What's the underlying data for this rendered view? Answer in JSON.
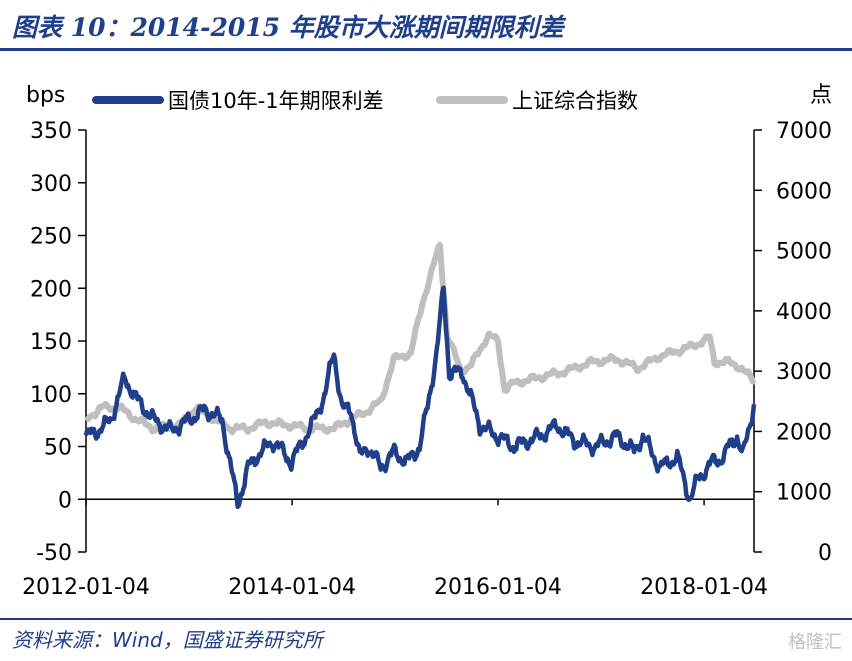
{
  "title": "图表 10：2014-2015 年股市大涨期间期限利差",
  "source": "资料来源：Wind，国盛证券研究所",
  "watermark": "格隆汇",
  "chart_data": {
    "type": "line",
    "y_left_unit": "bps",
    "y_right_unit": "点",
    "y_left_ticks": [
      "-50",
      "0",
      "50",
      "100",
      "150",
      "200",
      "250",
      "300",
      "350"
    ],
    "y_right_ticks": [
      "0",
      "1000",
      "2000",
      "3000",
      "4000",
      "5000",
      "6000",
      "7000"
    ],
    "x_ticks": [
      "2012-01-04",
      "2014-01-04",
      "2016-01-04",
      "2018-01-04"
    ],
    "ylim_left": [
      -50,
      350
    ],
    "ylim_right": [
      0,
      7000
    ],
    "xlim": [
      "2012-01-04",
      "2018-06-30"
    ],
    "legend_position": "top",
    "grid": false,
    "series": [
      {
        "name": "国债10年-1年期限利差",
        "axis": "left",
        "color": "#1f3f8a",
        "points": [
          [
            "2012-01-04",
            60
          ],
          [
            "2012-02-15",
            65
          ],
          [
            "2012-04-01",
            75
          ],
          [
            "2012-05-20",
            115
          ],
          [
            "2012-07-01",
            95
          ],
          [
            "2012-09-01",
            75
          ],
          [
            "2012-11-01",
            65
          ],
          [
            "2013-01-01",
            75
          ],
          [
            "2013-03-01",
            85
          ],
          [
            "2013-05-01",
            75
          ],
          [
            "2013-06-01",
            30
          ],
          [
            "2013-06-25",
            -5
          ],
          [
            "2013-08-01",
            30
          ],
          [
            "2013-09-15",
            45
          ],
          [
            "2013-11-01",
            55
          ],
          [
            "2014-01-01",
            35
          ],
          [
            "2014-02-01",
            50
          ],
          [
            "2014-03-15",
            70
          ],
          [
            "2014-05-01",
            100
          ],
          [
            "2014-06-01",
            140
          ],
          [
            "2014-07-01",
            85
          ],
          [
            "2014-08-01",
            85
          ],
          [
            "2014-09-01",
            40
          ],
          [
            "2014-10-01",
            50
          ],
          [
            "2014-11-15",
            30
          ],
          [
            "2015-01-01",
            45
          ],
          [
            "2015-02-15",
            35
          ],
          [
            "2015-04-01",
            50
          ],
          [
            "2015-05-01",
            90
          ],
          [
            "2015-06-01",
            140
          ],
          [
            "2015-06-25",
            200
          ],
          [
            "2015-07-15",
            120
          ],
          [
            "2015-09-01",
            120
          ],
          [
            "2015-11-01",
            70
          ],
          [
            "2016-01-01",
            60
          ],
          [
            "2016-03-01",
            50
          ],
          [
            "2016-06-01",
            60
          ],
          [
            "2016-08-01",
            70
          ],
          [
            "2016-10-01",
            55
          ],
          [
            "2016-12-15",
            50
          ],
          [
            "2017-03-01",
            60
          ],
          [
            "2017-05-01",
            45
          ],
          [
            "2017-06-01",
            60
          ],
          [
            "2017-08-01",
            30
          ],
          [
            "2017-10-01",
            40
          ],
          [
            "2017-11-15",
            0
          ],
          [
            "2017-12-15",
            20
          ],
          [
            "2018-02-01",
            35
          ],
          [
            "2018-03-15",
            40
          ],
          [
            "2018-04-01",
            50
          ],
          [
            "2018-05-01",
            60
          ],
          [
            "2018-05-20",
            40
          ],
          [
            "2018-06-10",
            65
          ],
          [
            "2018-06-30",
            90
          ]
        ]
      },
      {
        "name": "上证综合指数",
        "axis": "right",
        "color": "#bfbfbf",
        "points": [
          [
            "2012-01-04",
            2200
          ],
          [
            "2012-03-01",
            2400
          ],
          [
            "2012-05-01",
            2400
          ],
          [
            "2012-07-01",
            2200
          ],
          [
            "2012-09-01",
            2050
          ],
          [
            "2012-12-01",
            2100
          ],
          [
            "2013-02-01",
            2400
          ],
          [
            "2013-04-01",
            2200
          ],
          [
            "2013-06-01",
            2050
          ],
          [
            "2013-08-01",
            2050
          ],
          [
            "2013-10-01",
            2150
          ],
          [
            "2014-01-01",
            2100
          ],
          [
            "2014-03-01",
            2050
          ],
          [
            "2014-06-01",
            2050
          ],
          [
            "2014-08-01",
            2200
          ],
          [
            "2014-10-01",
            2350
          ],
          [
            "2014-11-15",
            2500
          ],
          [
            "2014-12-31",
            3200
          ],
          [
            "2015-03-01",
            3300
          ],
          [
            "2015-04-15",
            4200
          ],
          [
            "2015-06-12",
            5100
          ],
          [
            "2015-07-08",
            3600
          ],
          [
            "2015-08-26",
            3000
          ],
          [
            "2015-10-01",
            3100
          ],
          [
            "2015-12-01",
            3600
          ],
          [
            "2016-01-04",
            3500
          ],
          [
            "2016-01-28",
            2700
          ],
          [
            "2016-03-01",
            2800
          ],
          [
            "2016-06-01",
            2900
          ],
          [
            "2016-09-01",
            3000
          ],
          [
            "2016-12-01",
            3150
          ],
          [
            "2017-03-01",
            3200
          ],
          [
            "2017-05-15",
            3050
          ],
          [
            "2017-08-01",
            3250
          ],
          [
            "2017-11-15",
            3400
          ],
          [
            "2018-01-24",
            3550
          ],
          [
            "2018-02-10",
            3150
          ],
          [
            "2018-04-01",
            3150
          ],
          [
            "2018-05-01",
            3100
          ],
          [
            "2018-06-30",
            2850
          ]
        ]
      }
    ]
  }
}
